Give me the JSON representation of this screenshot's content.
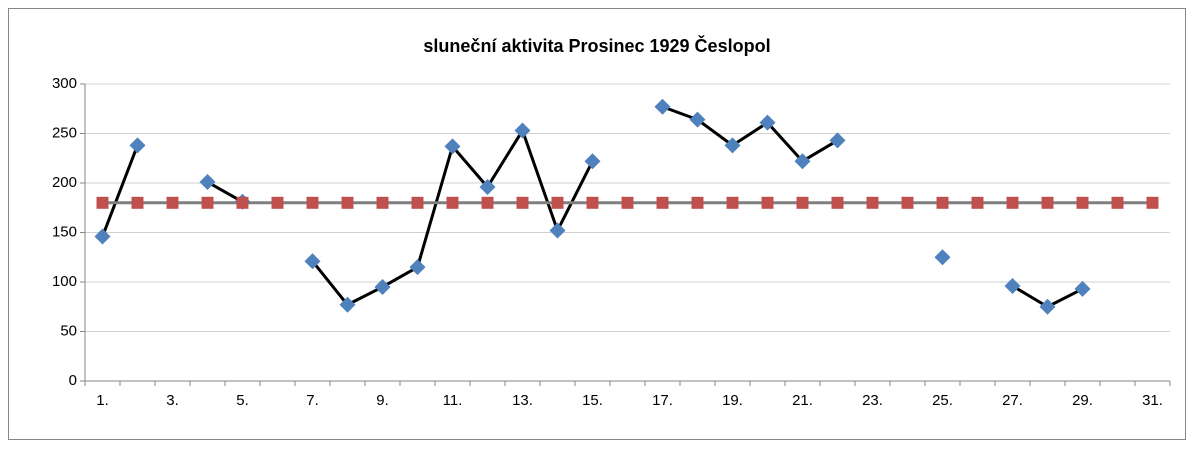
{
  "chart_data": {
    "type": "line",
    "title": "sluneční aktivita Prosinec 1929 Česlopol",
    "categories": [
      "1.",
      null,
      "3.",
      null,
      "5.",
      null,
      "7.",
      null,
      "9.",
      null,
      "11.",
      null,
      "13.",
      null,
      "15.",
      null,
      "17.",
      null,
      "19.",
      null,
      "21.",
      null,
      "23.",
      null,
      "25.",
      null,
      "27.",
      null,
      "29.",
      null,
      "31."
    ],
    "series": [
      {
        "color": "#4f81bd",
        "line_color": "#000000",
        "marker": "diamond",
        "values": [
          146,
          238,
          null,
          201,
          181,
          null,
          121,
          77,
          95,
          115,
          237,
          196,
          253,
          152,
          222,
          null,
          277,
          264,
          238,
          261,
          222,
          243,
          null,
          null,
          125,
          null,
          96,
          75,
          93,
          null,
          null
        ]
      },
      {
        "color": "#c0504d",
        "line_color": "#7f7f7f",
        "marker": "square",
        "values": [
          180,
          180,
          180,
          180,
          180,
          180,
          180,
          180,
          180,
          180,
          180,
          180,
          180,
          180,
          180,
          180,
          180,
          180,
          180,
          180,
          180,
          180,
          180,
          180,
          180,
          180,
          180,
          180,
          180,
          180,
          180
        ]
      }
    ],
    "ylim": [
      0,
      300
    ],
    "yticks": [
      0,
      50,
      100,
      150,
      200,
      250,
      300
    ],
    "grid": true
  }
}
